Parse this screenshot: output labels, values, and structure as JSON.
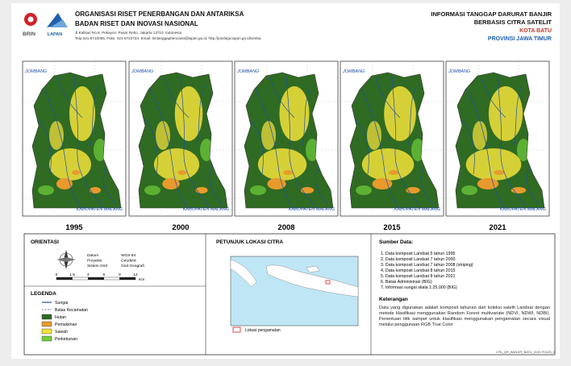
{
  "header": {
    "org": "ORGANISASI RISET PENERBANGAN DAN ANTARIKSA",
    "agency": "BADAN RISET DAN INOVASI NASIONAL",
    "address": "Jl.Kalisari No.8, Pekayon, Pasar Rebo, Jakarta 13710, Indonesia",
    "contact": "Telp.021-8710065, Faks. 021-8722733. Email: timtanggapbencana@lapan.go.id; http://pusfatja.lapan.go.id/simba",
    "logos": [
      "BRIN",
      "LAPAN"
    ]
  },
  "title": {
    "line1": "INFORMASI TANGGAP DARURAT BANJIR",
    "line2": "BERBASIS CITRA SATELIT",
    "city": "KOTA BATU",
    "province": "PROVINSI JAWA TIMUR"
  },
  "maps": {
    "years": [
      "1995",
      "2000",
      "2008",
      "2015",
      "2021"
    ],
    "labels": {
      "north": "JOMBANG",
      "south": "KABUPATEN MALANG"
    }
  },
  "orientation": {
    "heading": "ORIENTASI",
    "fields": [
      [
        "Datum",
        "WGS 84"
      ],
      [
        "Proyeksi",
        "Geodetic"
      ],
      [
        "Sistem Grid",
        "Grid Geografi"
      ]
    ],
    "scale": [
      "0",
      "1.5",
      "3",
      "6",
      "9",
      "12"
    ],
    "unit": "Km"
  },
  "legend": {
    "heading": "LEGENDA",
    "items": [
      {
        "label": "Sungai",
        "kind": "line",
        "color": "#1f4fa8"
      },
      {
        "label": "Batas Kecamatan",
        "kind": "dash",
        "color": "#1f4fa8"
      },
      {
        "label": "Hutan",
        "kind": "box",
        "color": "#2f6b22"
      },
      {
        "label": "Pemukiman",
        "kind": "box",
        "color": "#e89a2c"
      },
      {
        "label": "Sawah",
        "kind": "box",
        "color": "#f1e23a"
      },
      {
        "label": "Perkebunan",
        "kind": "box",
        "color": "#6fcf3a"
      }
    ]
  },
  "location": {
    "heading": "PETUNJUK LOKASI CITRA",
    "marker": "Lokasi pengamatan"
  },
  "sources": {
    "heading": "Sumber Data:",
    "items": [
      "1. Data komposit Landsat 5 tahun 1995",
      "2. Data komposit Landsat 7 tahun 2000",
      "3. Data komposit Landsat 7 tahun 2008 (striping)",
      "4. Data komposit Landsat 8 tahun 2015",
      "5. Data komposit Landsat 8 tahun 2021",
      "6. Batas Administrasi (BIG)",
      "7. Informasi sungai skala 1:25.000 (BIG)"
    ]
  },
  "notes": {
    "heading": "Keterangan",
    "text": "Data yang digunakan adalah komposit tahunan dari koleksi satelit Landsat dengan metode klasifikasi menggunakan Random Forest multivariate (NDVI, NDWI, NDBI). Penentuan titik sampel untuk klasifikasi menggunakan pengamatan secara visual melalui penggunaan RGB True Color"
  },
  "footer": "LPA_QR_BANJIR_BATU_2021 R1125_1"
}
